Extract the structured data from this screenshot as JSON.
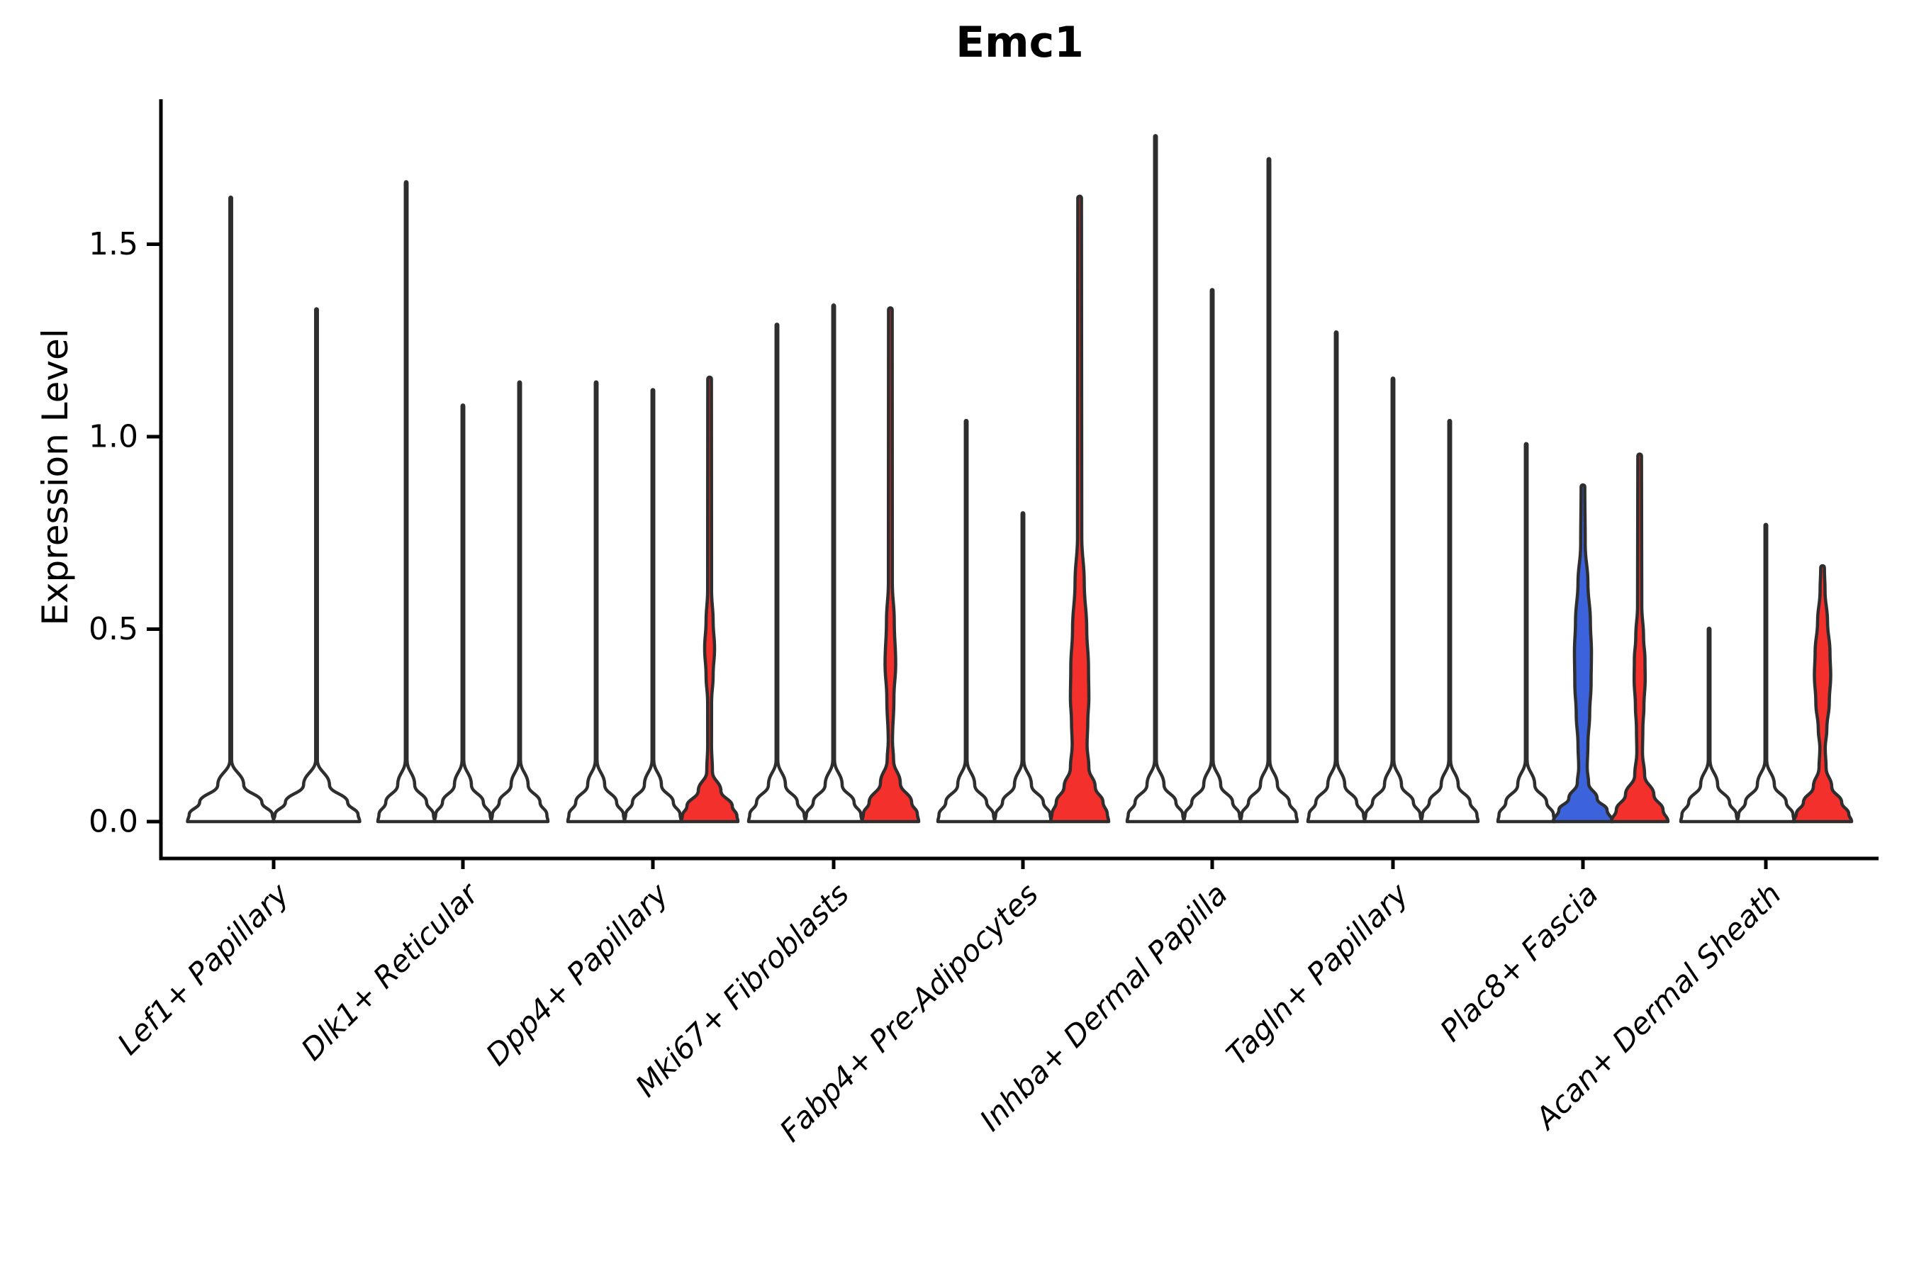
{
  "title": "Emc1",
  "chart_data": {
    "type": "violin",
    "title": "Emc1",
    "ylabel": "Expression Level",
    "xlabel": "",
    "ytick_labels": [
      "0.0",
      "0.5",
      "1.0",
      "1.5"
    ],
    "ytick_values": [
      0.0,
      0.5,
      1.0,
      1.5
    ],
    "ylim": [
      -0.1,
      1.88
    ],
    "grid": "off",
    "legend": "none",
    "colors": {
      "red": "#F3302B",
      "blue": "#3D63DC",
      "white": "#FFFFFF",
      "violin_outline": "#2E2E2E",
      "axis": "#000000",
      "background": "#FFFFFF"
    },
    "categories": [
      "Lef1+ Papillary",
      "Dlk1+ Reticular",
      "Dpp4+ Papillary",
      "Mki67+ Fibroblasts",
      "Fabp4+ Pre-Adipocytes",
      "Inhba+ Dermal Papilla",
      "Tagln+ Papillary",
      "Plac8+ Fascia",
      "Acan+ Dermal Sheath"
    ],
    "groups": [
      {
        "label": "Lef1+ Papillary",
        "violins": [
          {
            "max": 1.62,
            "fill": "white"
          },
          {
            "max": 1.33,
            "fill": "white"
          }
        ]
      },
      {
        "label": "Dlk1+ Reticular",
        "violins": [
          {
            "max": 1.66,
            "fill": "white"
          },
          {
            "max": 1.08,
            "fill": "white"
          },
          {
            "max": 1.14,
            "fill": "white"
          }
        ]
      },
      {
        "label": "Dpp4+ Papillary",
        "violins": [
          {
            "max": 1.14,
            "fill": "white"
          },
          {
            "max": 1.12,
            "fill": "white"
          },
          {
            "max": 1.15,
            "fill": "red",
            "profile": [
              [
                1.15,
                2.6
              ],
              [
                0.6,
                2.8
              ],
              [
                0.52,
                5.0
              ],
              [
                0.45,
                7.0
              ],
              [
                0.38,
                5.0
              ],
              [
                0.31,
                2.8
              ],
              [
                0.2,
                2.7
              ],
              [
                0.13,
                4.0
              ],
              [
                0.08,
                16
              ],
              [
                0.04,
                32
              ],
              [
                0.015,
                38.5
              ],
              [
                0,
                40
              ]
            ]
          }
        ]
      },
      {
        "label": "Mki67+ Fibroblasts",
        "violins": [
          {
            "max": 1.29,
            "fill": "white"
          },
          {
            "max": 1.34,
            "fill": "white"
          },
          {
            "max": 1.33,
            "fill": "red",
            "profile": [
              [
                1.33,
                2.6
              ],
              [
                0.62,
                2.8
              ],
              [
                0.52,
                5.5
              ],
              [
                0.41,
                7.5
              ],
              [
                0.32,
                5.0
              ],
              [
                0.21,
                3.0
              ],
              [
                0.16,
                4.5
              ],
              [
                0.1,
                14
              ],
              [
                0.05,
                30
              ],
              [
                0.02,
                38
              ],
              [
                0,
                40
              ]
            ]
          }
        ]
      },
      {
        "label": "Fabp4+ Pre-Adipocytes",
        "violins": [
          {
            "max": 1.04,
            "fill": "white"
          },
          {
            "max": 0.8,
            "fill": "white"
          },
          {
            "max": 1.62,
            "fill": "red",
            "profile": [
              [
                1.62,
                2.6
              ],
              [
                0.74,
                3.0
              ],
              [
                0.62,
                6.5
              ],
              [
                0.5,
                10
              ],
              [
                0.4,
                12.5
              ],
              [
                0.32,
                13
              ],
              [
                0.26,
                11.5
              ],
              [
                0.2,
                10.5
              ],
              [
                0.14,
                13
              ],
              [
                0.09,
                22
              ],
              [
                0.05,
                33
              ],
              [
                0.02,
                39
              ],
              [
                0,
                41
              ]
            ]
          }
        ]
      },
      {
        "label": "Inhba+ Dermal Papilla",
        "violins": [
          {
            "max": 1.78,
            "fill": "white"
          },
          {
            "max": 1.38,
            "fill": "white"
          },
          {
            "max": 1.72,
            "fill": "white"
          }
        ]
      },
      {
        "label": "Tagln+ Papillary",
        "violins": [
          {
            "max": 1.27,
            "fill": "white"
          },
          {
            "max": 1.15,
            "fill": "white"
          },
          {
            "max": 1.04,
            "fill": "white"
          }
        ]
      },
      {
        "label": "Plac8+ Fascia",
        "violins": [
          {
            "max": 0.98,
            "fill": "white"
          },
          {
            "max": 0.87,
            "fill": "blue",
            "profile": [
              [
                0.87,
                2.6
              ],
              [
                0.72,
                3.2
              ],
              [
                0.62,
                7.0
              ],
              [
                0.52,
                10.5
              ],
              [
                0.44,
                12
              ],
              [
                0.36,
                11.5
              ],
              [
                0.28,
                9.5
              ],
              [
                0.2,
                7.0
              ],
              [
                0.14,
                6.0
              ],
              [
                0.1,
                8.0
              ],
              [
                0.06,
                20
              ],
              [
                0.03,
                34
              ],
              [
                0,
                42
              ]
            ]
          },
          {
            "max": 0.95,
            "fill": "red",
            "profile": [
              [
                0.95,
                2.6
              ],
              [
                0.56,
                3.0
              ],
              [
                0.48,
                5.5
              ],
              [
                0.42,
                7.5
              ],
              [
                0.37,
                7.8
              ],
              [
                0.3,
                6.0
              ],
              [
                0.24,
                4.5
              ],
              [
                0.18,
                4.0
              ],
              [
                0.12,
                7.0
              ],
              [
                0.07,
                20
              ],
              [
                0.03,
                33
              ],
              [
                0,
                40
              ]
            ]
          }
        ]
      },
      {
        "label": "Acan+ Dermal Sheath",
        "violins": [
          {
            "max": 0.5,
            "fill": "white"
          },
          {
            "max": 0.77,
            "fill": "white"
          },
          {
            "max": 0.66,
            "fill": "red",
            "profile": [
              [
                0.66,
                2.6
              ],
              [
                0.6,
                3.5
              ],
              [
                0.52,
                7.0
              ],
              [
                0.44,
                10.5
              ],
              [
                0.38,
                11.5
              ],
              [
                0.31,
                9.5
              ],
              [
                0.24,
                6.0
              ],
              [
                0.19,
                3.8
              ],
              [
                0.14,
                5.0
              ],
              [
                0.09,
                13
              ],
              [
                0.05,
                27
              ],
              [
                0.02,
                37
              ],
              [
                0,
                41
              ]
            ]
          }
        ]
      }
    ]
  }
}
